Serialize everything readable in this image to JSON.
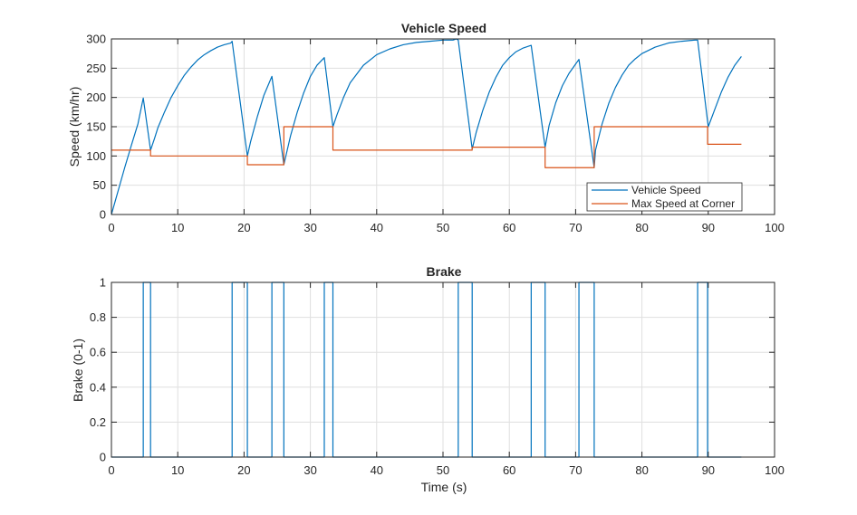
{
  "figure": {
    "xlabel": "Time (s)"
  },
  "colors": {
    "speed": "#0072BD",
    "max": "#D95319",
    "grid": "#dfdfdf",
    "axis": "#262626"
  },
  "chart_data": [
    {
      "type": "line",
      "title": "Vehicle Speed",
      "xlabel": "",
      "ylabel": "Speed (km/hr)",
      "xlim": [
        0,
        100
      ],
      "ylim": [
        0,
        300
      ],
      "xticks": [
        0,
        10,
        20,
        30,
        40,
        50,
        60,
        70,
        80,
        90,
        100
      ],
      "yticks": [
        0,
        50,
        100,
        150,
        200,
        250,
        300
      ],
      "grid": true,
      "legend": "bottom-right",
      "series": [
        {
          "name": "Vehicle Speed",
          "x": [
            0,
            0.5,
            1,
            2,
            3,
            4,
            4.8,
            5.9,
            6.5,
            7,
            8,
            9,
            10,
            11,
            12,
            13,
            14,
            15,
            16,
            17,
            18,
            18.2,
            20.5,
            21,
            22,
            23,
            24.2,
            26,
            27,
            28,
            29,
            30,
            31,
            32.1,
            33.4,
            34,
            35,
            36,
            38,
            40,
            42,
            44,
            46,
            48,
            50,
            51.5,
            52,
            52.3,
            54.4,
            55,
            56,
            57,
            58,
            59,
            60,
            61,
            62,
            63.3,
            65.4,
            66,
            67,
            68,
            69,
            70.5,
            72.8,
            73,
            74,
            75,
            76,
            77,
            78,
            79,
            80,
            82,
            84,
            86,
            88,
            88.4,
            90,
            91,
            92,
            93,
            94,
            95
          ],
          "y": [
            0,
            20,
            40,
            80,
            118,
            155,
            199,
            110,
            130,
            148,
            175,
            200,
            220,
            238,
            252,
            264,
            273,
            280,
            286,
            290,
            293,
            296,
            100,
            125,
            167,
            204,
            236,
            85,
            134,
            174,
            208,
            236,
            255,
            268,
            150,
            170,
            200,
            225,
            255,
            273,
            283,
            290,
            294,
            296,
            298,
            298,
            300,
            298,
            112,
            140,
            178,
            210,
            235,
            255,
            268,
            278,
            284,
            289,
            115,
            152,
            191,
            220,
            241,
            265,
            80,
            110,
            155,
            190,
            217,
            238,
            255,
            266,
            275,
            286,
            293,
            296,
            298,
            298,
            150,
            180,
            210,
            235,
            255,
            270
          ]
        },
        {
          "name": "Max Speed at Corner",
          "x": [
            0,
            5.9,
            5.9,
            20.5,
            20.5,
            26,
            26,
            33.4,
            33.4,
            54.4,
            54.4,
            65.4,
            65.4,
            72.8,
            72.8,
            89.9,
            89.9,
            95
          ],
          "y": [
            110,
            110,
            100,
            100,
            85,
            85,
            150,
            150,
            110,
            110,
            115,
            115,
            80,
            80,
            150,
            150,
            120,
            120
          ]
        }
      ]
    },
    {
      "type": "line",
      "title": "Brake",
      "xlabel": "Time (s)",
      "ylabel": "Brake (0-1)",
      "xlim": [
        0,
        100
      ],
      "ylim": [
        0,
        1
      ],
      "xticks": [
        0,
        10,
        20,
        30,
        40,
        50,
        60,
        70,
        80,
        90,
        100
      ],
      "yticks": [
        0,
        0.2,
        0.4,
        0.6,
        0.8,
        1
      ],
      "ytick_labels": [
        "0",
        "0.2",
        "0.4",
        "0.6",
        "0.8",
        "1"
      ],
      "grid": true,
      "series": [
        {
          "x": [
            0,
            4.8,
            4.8,
            5.9,
            5.9,
            18.2,
            18.2,
            20.5,
            20.5,
            24.2,
            24.2,
            26,
            26,
            32.1,
            32.1,
            33.4,
            33.4,
            52.3,
            52.3,
            54.4,
            54.4,
            63.3,
            63.3,
            65.4,
            65.4,
            70.5,
            70.5,
            72.8,
            72.8,
            88.4,
            88.4,
            89.9,
            89.9,
            95
          ],
          "y": [
            0,
            0,
            1,
            1,
            0,
            0,
            1,
            1,
            0,
            0,
            1,
            1,
            0,
            0,
            1,
            1,
            0,
            0,
            1,
            1,
            0,
            0,
            1,
            1,
            0,
            0,
            1,
            1,
            0,
            0,
            1,
            1,
            0,
            0
          ]
        }
      ]
    }
  ]
}
